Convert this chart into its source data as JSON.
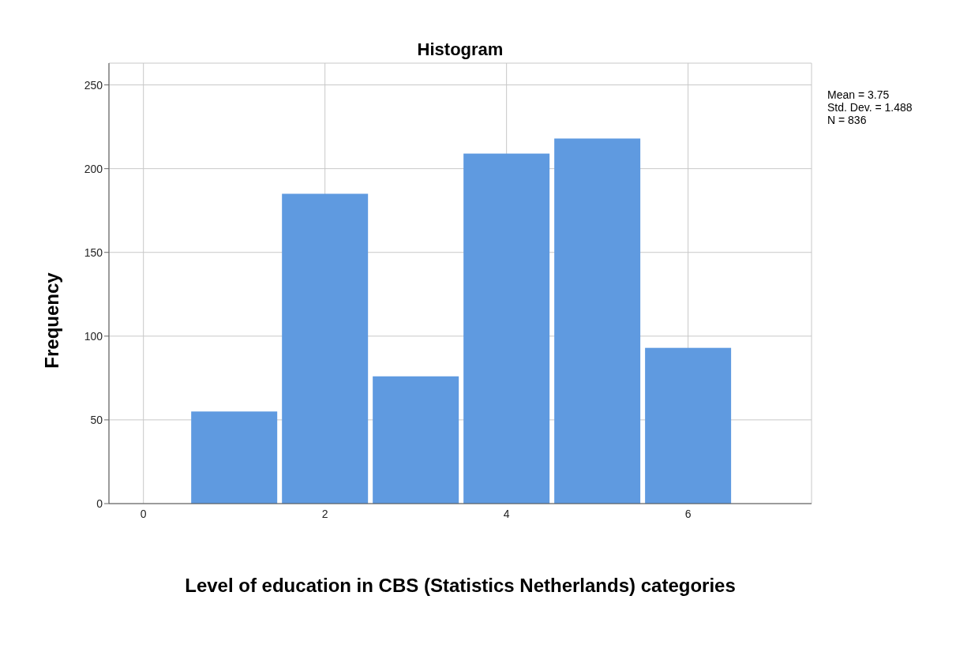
{
  "chart_data": {
    "type": "histogram",
    "title": "Histogram",
    "xlabel": "Level of education in CBS (Statistics Netherlands) categories",
    "ylabel": "Frequency",
    "bins": [
      0.5,
      1.5,
      2.5,
      3.5,
      4.5,
      5.5,
      6.5
    ],
    "values": [
      55,
      185,
      76,
      209,
      218,
      93
    ],
    "color": "#5f9ae0",
    "xlim": [
      -0.38,
      7.36
    ],
    "xticks": [
      0,
      2,
      4,
      6
    ],
    "ylim": [
      0,
      263
    ],
    "yticks": [
      0,
      50,
      100,
      150,
      200,
      250
    ],
    "grid": true,
    "annotations": [
      "Mean = 3.75",
      "Std. Dev. = 1.488",
      "N = 836"
    ]
  }
}
